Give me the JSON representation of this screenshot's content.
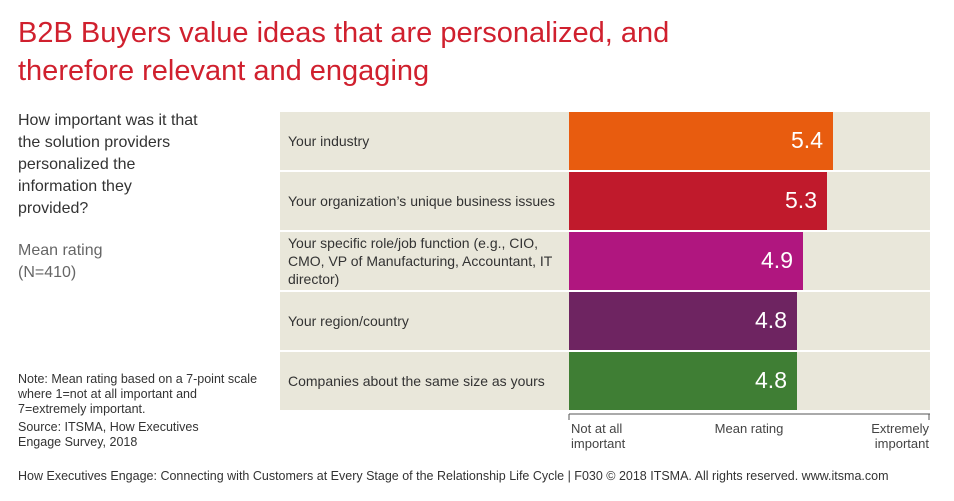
{
  "chart_data": {
    "type": "barh",
    "title": "B2B Buyers value ideas that are personalized, and therefore relevant and engaging",
    "question": "How important was it that the solution providers personalized the information they provided?",
    "measure": "Mean rating (N=410)",
    "note": "Note: Mean rating based on a 7-point scale where 1=not at all important and 7=extremely important.",
    "source": "Source: ITSMA, How Executives Engage Survey, 2018",
    "footer": "How Executives Engage: Connecting with Customers at Every Stage of the Relationship Life Cycle | F030 © 2018 ITSMA. All rights reserved. www.itsma.com",
    "categories": [
      "Your industry",
      "Your organization’s unique business issues",
      "Your specific role/job function (e.g., CIO, CMO, VP of Manufacturing, Accountant, IT director)",
      "Your region/country",
      "Companies about the same size as yours"
    ],
    "values": [
      5.4,
      5.3,
      4.9,
      4.8,
      4.8
    ],
    "colors": [
      "#e85c0f",
      "#c01a2c",
      "#b0167f",
      "#6e2461",
      "#3f7e34"
    ],
    "xlabel": "Mean rating",
    "xlim": [
      1,
      7
    ],
    "xticks": [
      {
        "value": 1,
        "label": "Not at all important"
      },
      {
        "value": 7,
        "label": "Extremely important"
      }
    ]
  }
}
